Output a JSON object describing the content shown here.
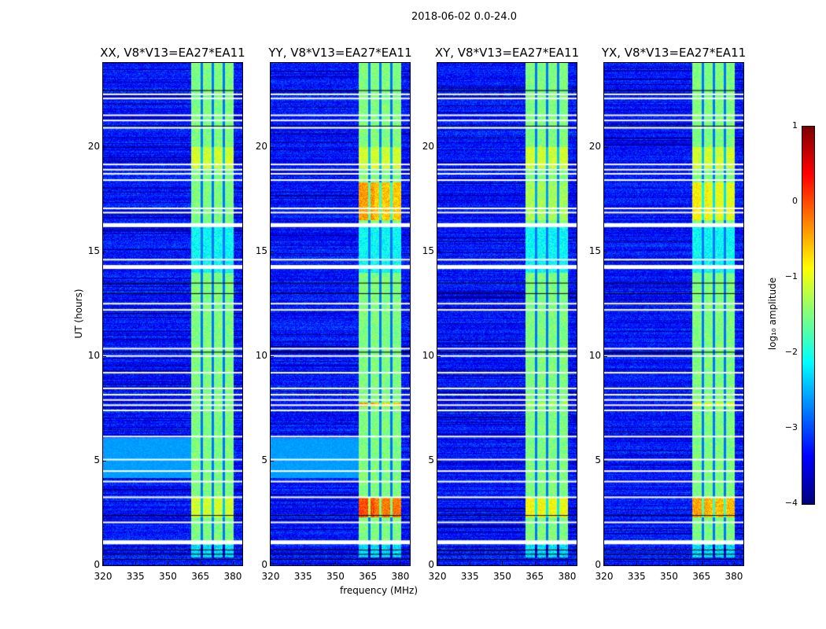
{
  "suptitle": "2018-06-02 0.0-24.0",
  "xlabel": "frequency (MHz)",
  "ylabel": "UT (hours)",
  "chart_data": {
    "type": "heatmap",
    "panels": [
      {
        "title": "XX, V8*V13=EA27*EA11",
        "hot": 0.0
      },
      {
        "title": "YY, V8*V13=EA27*EA11",
        "hot": 1.0
      },
      {
        "title": "XY, V8*V13=EA27*EA11",
        "hot": 0.2
      },
      {
        "title": "YX, V8*V13=EA27*EA11",
        "hot": 0.6
      }
    ],
    "xlim": [
      320,
      384.4
    ],
    "ylim": [
      0,
      24
    ],
    "xticks": [
      "320",
      "335",
      "350",
      "365",
      "380"
    ],
    "xtick_values": [
      320,
      335,
      350,
      365,
      380
    ],
    "yticks": [
      "0",
      "5",
      "10",
      "15",
      "20"
    ],
    "ytick_values": [
      0,
      5,
      10,
      15,
      20
    ],
    "rfi_band_mhz": [
      360.7,
      380.3
    ],
    "flagged_hours": [
      1.1,
      2.05,
      3.25,
      4.0,
      4.5,
      5.05,
      6.15,
      7.4,
      7.65,
      7.9,
      8.15,
      8.45,
      9.2,
      10.0,
      10.35,
      12.2,
      12.5,
      14.25,
      14.6,
      16.25,
      16.85,
      17.05,
      18.4,
      18.7,
      18.9,
      19.15,
      20.9,
      21.25,
      21.5,
      22.3,
      22.5
    ],
    "background_level": -3.3,
    "band_level": -1.5
  },
  "colorbar": {
    "label": "log₁₀ amplitude",
    "ticks": [
      "1",
      "0",
      "−1",
      "−2",
      "−3",
      "−4"
    ],
    "tick_values": [
      1,
      0,
      -1,
      -2,
      -3,
      -4
    ],
    "range": [
      -4,
      1
    ],
    "colormap": "jet"
  }
}
